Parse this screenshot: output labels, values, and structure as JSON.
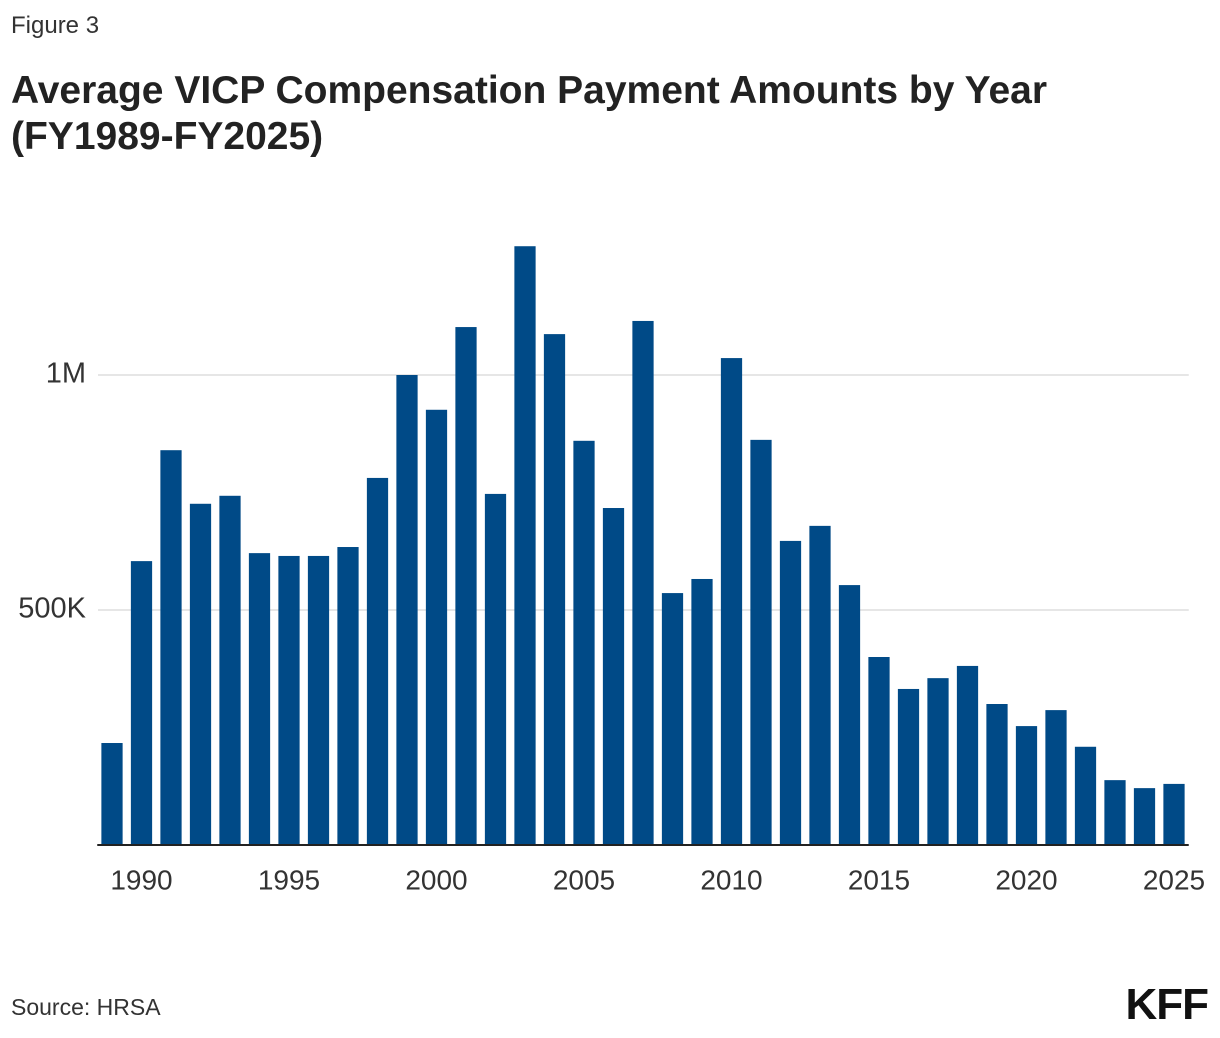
{
  "chart_data": {
    "type": "bar",
    "figure_label": "Figure 3",
    "title": "Average VICP Compensation Payment Amounts by Year (FY1989-FY2025)",
    "source": "Source: HRSA",
    "logo": "KFF",
    "x": [
      1989,
      1990,
      1991,
      1992,
      1993,
      1994,
      1995,
      1996,
      1997,
      1998,
      1999,
      2000,
      2001,
      2002,
      2003,
      2004,
      2005,
      2006,
      2007,
      2008,
      2009,
      2010,
      2011,
      2012,
      2013,
      2014,
      2015,
      2016,
      2017,
      2018,
      2019,
      2020,
      2021,
      2022,
      2023,
      2024,
      2025
    ],
    "values": [
      217000,
      604000,
      840000,
      726000,
      743000,
      621000,
      615000,
      615000,
      634000,
      781000,
      1000000,
      926000,
      1102000,
      747000,
      1274000,
      1087000,
      860000,
      717000,
      1115000,
      536000,
      566000,
      1036000,
      862000,
      647000,
      679000,
      553000,
      400000,
      332000,
      355000,
      381000,
      300000,
      253000,
      287000,
      209000,
      138000,
      121000,
      130000
    ],
    "color": "#004a87",
    "xlim": [
      1988.5,
      2025.5
    ],
    "xticks": [
      1990,
      1995,
      2000,
      2005,
      2010,
      2015,
      2020,
      2025
    ],
    "ylim": [
      0,
      1350000
    ],
    "yticks": [
      {
        "value": 500000,
        "label": "500K"
      },
      {
        "value": 1000000,
        "label": "1M"
      }
    ],
    "grid": true
  }
}
